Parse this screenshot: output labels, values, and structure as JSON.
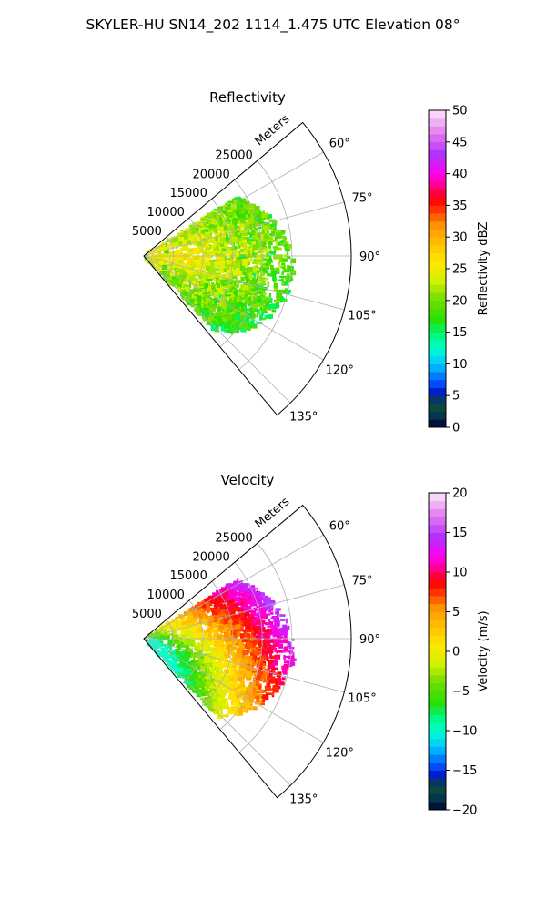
{
  "figure": {
    "suptitle": "SKYLER-HU  SN14_202  1114_1.475 UTC Elevation 08°"
  },
  "chart_data": [
    {
      "type": "heatmap",
      "projection": "polar-sector",
      "title": "Reflectivity",
      "radial_label": "Meters",
      "r_ticks": [
        5000,
        10000,
        15000,
        20000,
        25000
      ],
      "r_tick_labels": [
        "5000",
        "10000",
        "15000",
        "20000",
        "25000"
      ],
      "rlim": [
        0,
        35000
      ],
      "theta_ticks": [
        60,
        75,
        90,
        105,
        120,
        135
      ],
      "theta_tick_labels": [
        "60°",
        "75°",
        "90°",
        "105°",
        "120°",
        "135°"
      ],
      "theta_range_deg": [
        50,
        140
      ],
      "grid": true,
      "echo_extent": {
        "theta_deg": [
          58,
          136
        ],
        "r_max_m": 25500
      },
      "echo_peak_dbz": 27,
      "colorbar": {
        "label": "Reflectivity dBZ",
        "min": 0,
        "max": 50,
        "ticks": [
          0,
          5,
          10,
          15,
          20,
          25,
          30,
          35,
          40,
          45,
          50
        ],
        "tick_labels": [
          "0",
          "5",
          "10",
          "15",
          "20",
          "25",
          "30",
          "35",
          "40",
          "45",
          "50"
        ],
        "stops": [
          [
            0.0,
            "#00003a"
          ],
          [
            0.04,
            "#063a4a"
          ],
          [
            0.08,
            "#0d5238"
          ],
          [
            0.1,
            "#0008ba"
          ],
          [
            0.14,
            "#0050ff"
          ],
          [
            0.2,
            "#00c8ff"
          ],
          [
            0.25,
            "#00ffcc"
          ],
          [
            0.3,
            "#00f570"
          ],
          [
            0.34,
            "#28e000"
          ],
          [
            0.4,
            "#6ddd00"
          ],
          [
            0.46,
            "#d0f000"
          ],
          [
            0.52,
            "#ffe800"
          ],
          [
            0.58,
            "#ffc000"
          ],
          [
            0.64,
            "#ff9000"
          ],
          [
            0.68,
            "#ff4000"
          ],
          [
            0.72,
            "#ff0000"
          ],
          [
            0.76,
            "#ff0088"
          ],
          [
            0.8,
            "#ff00f0"
          ],
          [
            0.86,
            "#b030ff"
          ],
          [
            0.92,
            "#e070f0"
          ],
          [
            1.0,
            "#fce6fc"
          ]
        ]
      }
    },
    {
      "type": "heatmap",
      "projection": "polar-sector",
      "title": "Velocity",
      "radial_label": "Meters",
      "r_ticks": [
        5000,
        10000,
        15000,
        20000,
        25000
      ],
      "r_tick_labels": [
        "5000",
        "10000",
        "15000",
        "20000",
        "25000"
      ],
      "rlim": [
        0,
        35000
      ],
      "theta_ticks": [
        60,
        75,
        90,
        105,
        120,
        135
      ],
      "theta_tick_labels": [
        "60°",
        "75°",
        "90°",
        "105°",
        "120°",
        "135°"
      ],
      "theta_range_deg": [
        50,
        140
      ],
      "grid": true,
      "echo_extent": {
        "theta_deg": [
          58,
          136
        ],
        "r_max_m": 25500
      },
      "velocity_range_ms": [
        -10,
        17
      ],
      "colorbar": {
        "label": "Velocity (m/s)",
        "min": -20,
        "max": 20,
        "ticks": [
          -20,
          -15,
          -10,
          -5,
          0,
          5,
          10,
          15,
          20
        ],
        "tick_labels": [
          "−20",
          "−15",
          "−10",
          "−5",
          "0",
          "5",
          "10",
          "15",
          "20"
        ],
        "stops": [
          [
            0.0,
            "#00003a"
          ],
          [
            0.04,
            "#063a4a"
          ],
          [
            0.08,
            "#0d5238"
          ],
          [
            0.1,
            "#0008ba"
          ],
          [
            0.14,
            "#0050ff"
          ],
          [
            0.2,
            "#00c8ff"
          ],
          [
            0.25,
            "#00ffcc"
          ],
          [
            0.3,
            "#00f570"
          ],
          [
            0.34,
            "#28e000"
          ],
          [
            0.4,
            "#6ddd00"
          ],
          [
            0.46,
            "#d0f000"
          ],
          [
            0.52,
            "#ffe800"
          ],
          [
            0.58,
            "#ffc000"
          ],
          [
            0.64,
            "#ff9000"
          ],
          [
            0.68,
            "#ff4000"
          ],
          [
            0.72,
            "#ff0000"
          ],
          [
            0.76,
            "#ff0088"
          ],
          [
            0.8,
            "#ff00f0"
          ],
          [
            0.86,
            "#b030ff"
          ],
          [
            0.92,
            "#e070f0"
          ],
          [
            1.0,
            "#fce6fc"
          ]
        ]
      }
    }
  ]
}
